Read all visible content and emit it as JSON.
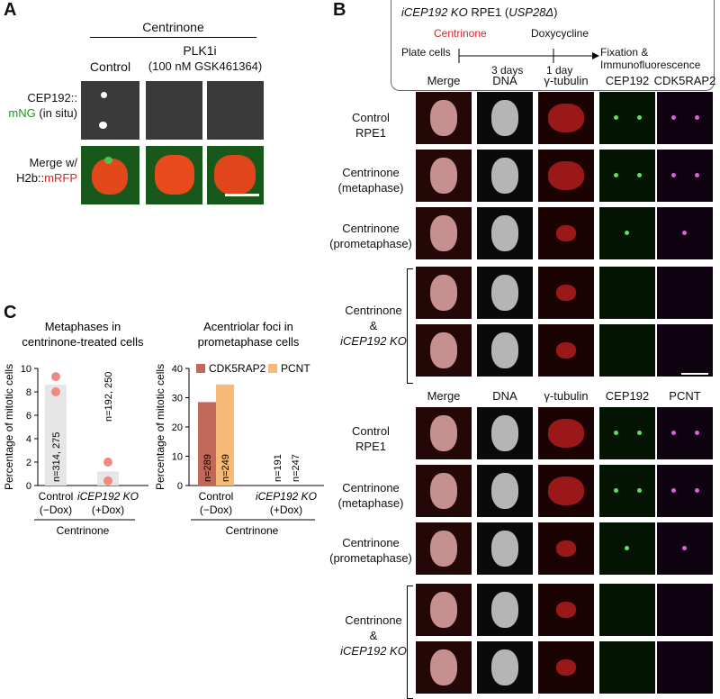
{
  "panel_a": {
    "letter": "A",
    "header_top": "Centrinone",
    "plk1i_label": "PLK1i",
    "plk1i_dose": "(100 nM GSK461364)",
    "control_label": "Control",
    "row1_line1": "CEP192::",
    "row1_line2a": "mNG",
    "row1_line2b": " (in situ)",
    "row2_line1": "Merge w/",
    "row2_line2a": "H2b::",
    "row2_line2b": "mRFP"
  },
  "panel_b": {
    "letter": "B",
    "scheme": {
      "title_a": "iCEP192 KO",
      "title_b": " RPE1 (",
      "title_c": "USP28Δ",
      "title_d": ")",
      "centrinone": "Centrinone",
      "doxycycline": "Doxycycline",
      "plate": "Plate cells",
      "days3": "3 days",
      "day1": "1 day",
      "fixation": "Fixation &",
      "immuno": "Immunofluorescence"
    },
    "top_headers": [
      "Merge",
      "DNA",
      "γ-tubulin",
      "CEP192",
      "CDK5RAP2"
    ],
    "bottom_headers": [
      "Merge",
      "DNA",
      "γ-tubulin",
      "CEP192",
      "PCNT"
    ],
    "rows": {
      "control_1": "Control",
      "control_2": "RPE1",
      "meta_1": "Centrinone",
      "meta_2": "(metaphase)",
      "prometa_1": "Centrinone",
      "prometa_2": "(prometaphase)",
      "ko_1": "Centrinone",
      "ko_2": "&",
      "ko_3": "iCEP192 KO"
    }
  },
  "panel_c": {
    "letter": "C",
    "colors": {
      "bar_gray": "#e6e6e6",
      "dot": "#f08a80",
      "cdk5rap2": "#c0685a",
      "pcnt": "#f7b977"
    }
  },
  "chart_data": [
    {
      "type": "bar",
      "title": "Metaphases in centrinone-treated cells",
      "title_line1": "Metaphases in",
      "title_line2": "centrinone-treated cells",
      "ylabel": "Percentage of mitotic cells",
      "ylim": [
        0,
        10
      ],
      "yticks": [
        "0",
        "2",
        "4",
        "6",
        "8",
        "10"
      ],
      "categories": [
        "Control",
        "iCEP192 KO"
      ],
      "category_sub": [
        "(−Dox)",
        "(+Dox)"
      ],
      "group_label": "Centrinone",
      "values": [
        8.6,
        1.2
      ],
      "replicates": [
        [
          9.3,
          8.0
        ],
        [
          2.0,
          0.4
        ]
      ],
      "n_labels": [
        "n=314, 275",
        "n=192, 250"
      ]
    },
    {
      "type": "bar",
      "title": "Acentriolar foci in prometaphase cells",
      "title_line1": "Acentriolar foci in",
      "title_line2": "prometaphase cells",
      "ylabel": "Percentage of mitotic cells",
      "ylim": [
        0,
        40
      ],
      "yticks": [
        "0",
        "10",
        "20",
        "30",
        "40"
      ],
      "categories": [
        "Control",
        "iCEP192 KO"
      ],
      "category_sub": [
        "(−Dox)",
        "(+Dox)"
      ],
      "group_label": "Centrinone",
      "series": [
        {
          "name": "CDK5RAP2",
          "values": [
            28.5,
            0
          ],
          "n_labels": [
            "n=289",
            "n=191"
          ]
        },
        {
          "name": "PCNT",
          "values": [
            34.5,
            0
          ],
          "n_labels": [
            "n=249",
            "n=247"
          ]
        }
      ]
    }
  ]
}
